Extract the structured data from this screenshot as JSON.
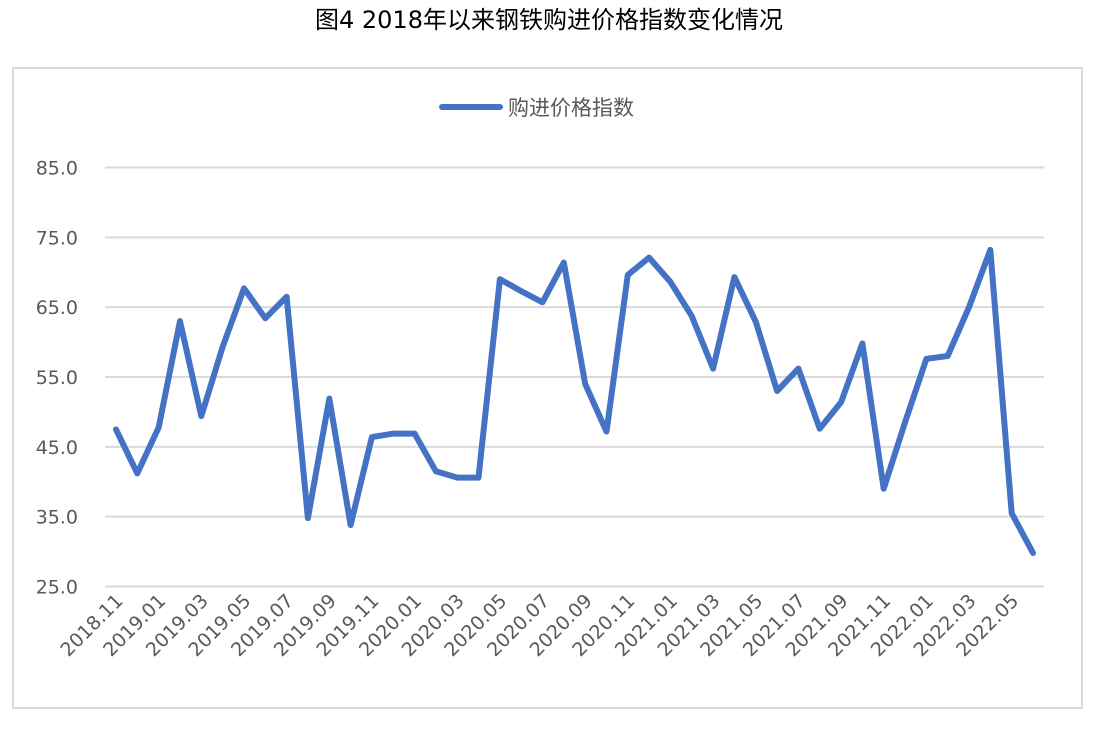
{
  "figure_title": "图4  2018年以来钢铁购进价格指数变化情况",
  "chart_data": {
    "type": "line",
    "title": "图4  2018年以来钢铁购进价格指数变化情况",
    "xlabel": "",
    "ylabel": "",
    "ylim": [
      25.0,
      85.0
    ],
    "y_ticks": [
      "25.0",
      "35.0",
      "45.0",
      "55.0",
      "65.0",
      "75.0",
      "85.0"
    ],
    "grid": "horizontal",
    "legend_position": "top-center",
    "x": [
      "2018.11",
      "2018.12",
      "2019.01",
      "2019.02",
      "2019.03",
      "2019.04",
      "2019.05",
      "2019.06",
      "2019.07",
      "2019.08",
      "2019.09",
      "2019.10",
      "2019.11",
      "2019.12",
      "2020.01",
      "2020.02",
      "2020.03",
      "2020.04",
      "2020.05",
      "2020.06",
      "2020.07",
      "2020.08",
      "2020.09",
      "2020.10",
      "2020.11",
      "2020.12",
      "2021.01",
      "2021.02",
      "2021.03",
      "2021.04",
      "2021.05",
      "2021.06",
      "2021.07",
      "2021.08",
      "2021.09",
      "2021.10",
      "2021.11",
      "2021.12",
      "2022.01",
      "2022.02",
      "2022.03",
      "2022.04",
      "2022.05",
      "2022.06"
    ],
    "x_tick_labels": [
      "2018.11",
      "2019.01",
      "2019.03",
      "2019.05",
      "2019.07",
      "2019.09",
      "2019.11",
      "2020.01",
      "2020.03",
      "2020.05",
      "2020.07",
      "2020.09",
      "2020.11",
      "2021.01",
      "2021.03",
      "2021.05",
      "2021.07",
      "2021.09",
      "2021.11",
      "2022.01",
      "2022.03",
      "2022.05"
    ],
    "series": [
      {
        "name": "购进价格指数",
        "color": "#4472c4",
        "values": [
          47.5,
          41.2,
          47.8,
          63.0,
          49.4,
          59.3,
          67.7,
          63.4,
          66.5,
          34.8,
          51.9,
          33.8,
          46.4,
          46.9,
          46.9,
          41.5,
          40.6,
          40.6,
          69.0,
          67.3,
          65.7,
          71.4,
          54.0,
          47.2,
          69.6,
          72.1,
          68.6,
          63.7,
          56.2,
          69.3,
          62.9,
          53.0,
          56.2,
          47.6,
          51.4,
          59.8,
          39.0,
          48.5,
          57.6,
          58.0,
          65.0,
          73.2,
          35.5,
          29.8
        ]
      }
    ]
  }
}
